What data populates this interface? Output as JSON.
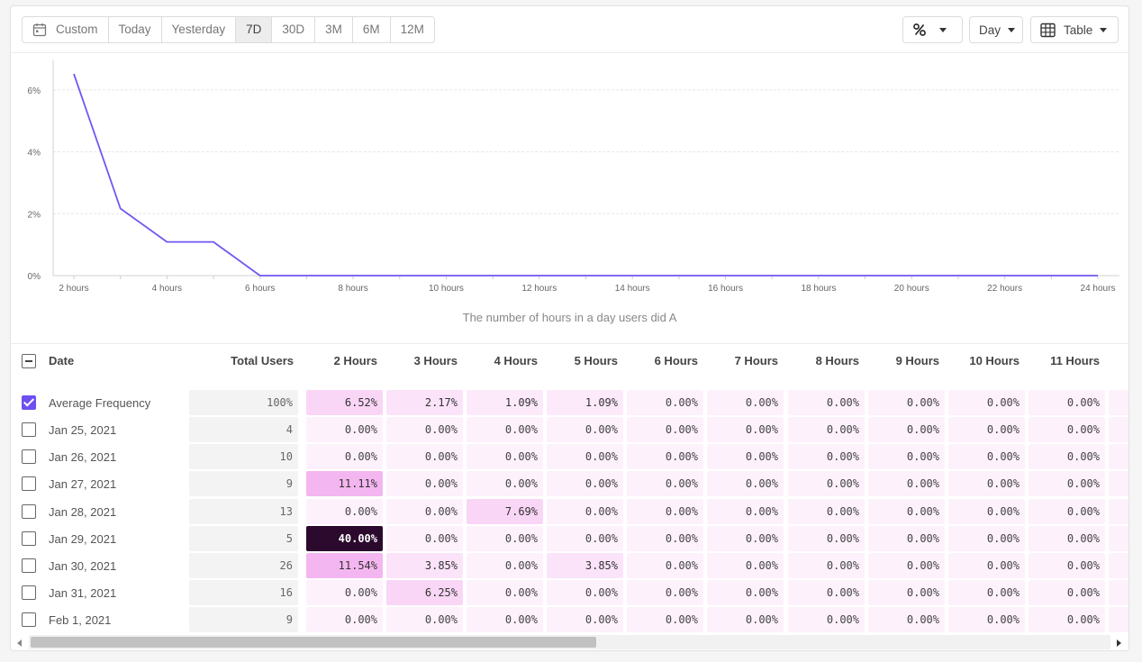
{
  "toolbar": {
    "ranges": [
      {
        "label": "Custom",
        "active": false
      },
      {
        "label": "Today",
        "active": false
      },
      {
        "label": "Yesterday",
        "active": false
      },
      {
        "label": "7D",
        "active": true
      },
      {
        "label": "30D",
        "active": false
      },
      {
        "label": "3M",
        "active": false
      },
      {
        "label": "6M",
        "active": false
      },
      {
        "label": "12M",
        "active": false
      }
    ],
    "percent_icon": "percent-icon",
    "granularity": "Day",
    "view": "Table"
  },
  "chart_data": {
    "type": "line",
    "x": [
      "2 hours",
      "3 hours",
      "4 hours",
      "5 hours",
      "6 hours",
      "7 hours",
      "8 hours",
      "9 hours",
      "10 hours",
      "11 hours",
      "12 hours",
      "13 hours",
      "14 hours",
      "15 hours",
      "16 hours",
      "17 hours",
      "18 hours",
      "19 hours",
      "20 hours",
      "21 hours",
      "22 hours",
      "23 hours",
      "24 hours"
    ],
    "x_tick_labels": [
      "2 hours",
      "4 hours",
      "6 hours",
      "8 hours",
      "10 hours",
      "12 hours",
      "14 hours",
      "16 hours",
      "18 hours",
      "20 hours",
      "22 hours",
      "24 hours"
    ],
    "y_tick_labels": [
      "0%",
      "2%",
      "4%",
      "6%"
    ],
    "y_ticks": [
      0,
      2,
      4,
      6
    ],
    "ylim": [
      0,
      6.9
    ],
    "values": [
      6.52,
      2.17,
      1.09,
      1.09,
      0,
      0,
      0,
      0,
      0,
      0,
      0,
      0,
      0,
      0,
      0,
      0,
      0,
      0,
      0,
      0,
      0,
      0,
      0
    ],
    "xlabel": "The number of hours in a day users did A",
    "line_color": "#7356f1",
    "grid": true
  },
  "table": {
    "headers": {
      "date": "Date",
      "total": "Total Users",
      "hours": [
        "2 Hours",
        "3 Hours",
        "4 Hours",
        "5 Hours",
        "6 Hours",
        "7 Hours",
        "8 Hours",
        "9 Hours",
        "10 Hours",
        "11 Hours"
      ]
    },
    "rows": [
      {
        "label": "Average Frequency",
        "checked": true,
        "total": "100%",
        "values": [
          6.52,
          2.17,
          1.09,
          1.09,
          0,
          0,
          0,
          0,
          0,
          0
        ]
      },
      {
        "label": "Jan 25, 2021",
        "checked": false,
        "total": "4",
        "values": [
          0,
          0,
          0,
          0,
          0,
          0,
          0,
          0,
          0,
          0
        ]
      },
      {
        "label": "Jan 26, 2021",
        "checked": false,
        "total": "10",
        "values": [
          0,
          0,
          0,
          0,
          0,
          0,
          0,
          0,
          0,
          0
        ]
      },
      {
        "label": "Jan 27, 2021",
        "checked": false,
        "total": "9",
        "values": [
          11.11,
          0,
          0,
          0,
          0,
          0,
          0,
          0,
          0,
          0
        ]
      },
      {
        "label": "Jan 28, 2021",
        "checked": false,
        "total": "13",
        "values": [
          0,
          0,
          7.69,
          0,
          0,
          0,
          0,
          0,
          0,
          0
        ]
      },
      {
        "label": "Jan 29, 2021",
        "checked": false,
        "total": "5",
        "values": [
          40.0,
          0,
          0,
          0,
          0,
          0,
          0,
          0,
          0,
          0
        ]
      },
      {
        "label": "Jan 30, 2021",
        "checked": false,
        "total": "26",
        "values": [
          11.54,
          3.85,
          0,
          3.85,
          0,
          0,
          0,
          0,
          0,
          0
        ]
      },
      {
        "label": "Jan 31, 2021",
        "checked": false,
        "total": "16",
        "values": [
          0,
          6.25,
          0,
          0,
          0,
          0,
          0,
          0,
          0,
          0
        ]
      },
      {
        "label": "Feb 1, 2021",
        "checked": false,
        "total": "9",
        "values": [
          0,
          0,
          0,
          0,
          0,
          0,
          0,
          0,
          0,
          0
        ]
      }
    ]
  }
}
